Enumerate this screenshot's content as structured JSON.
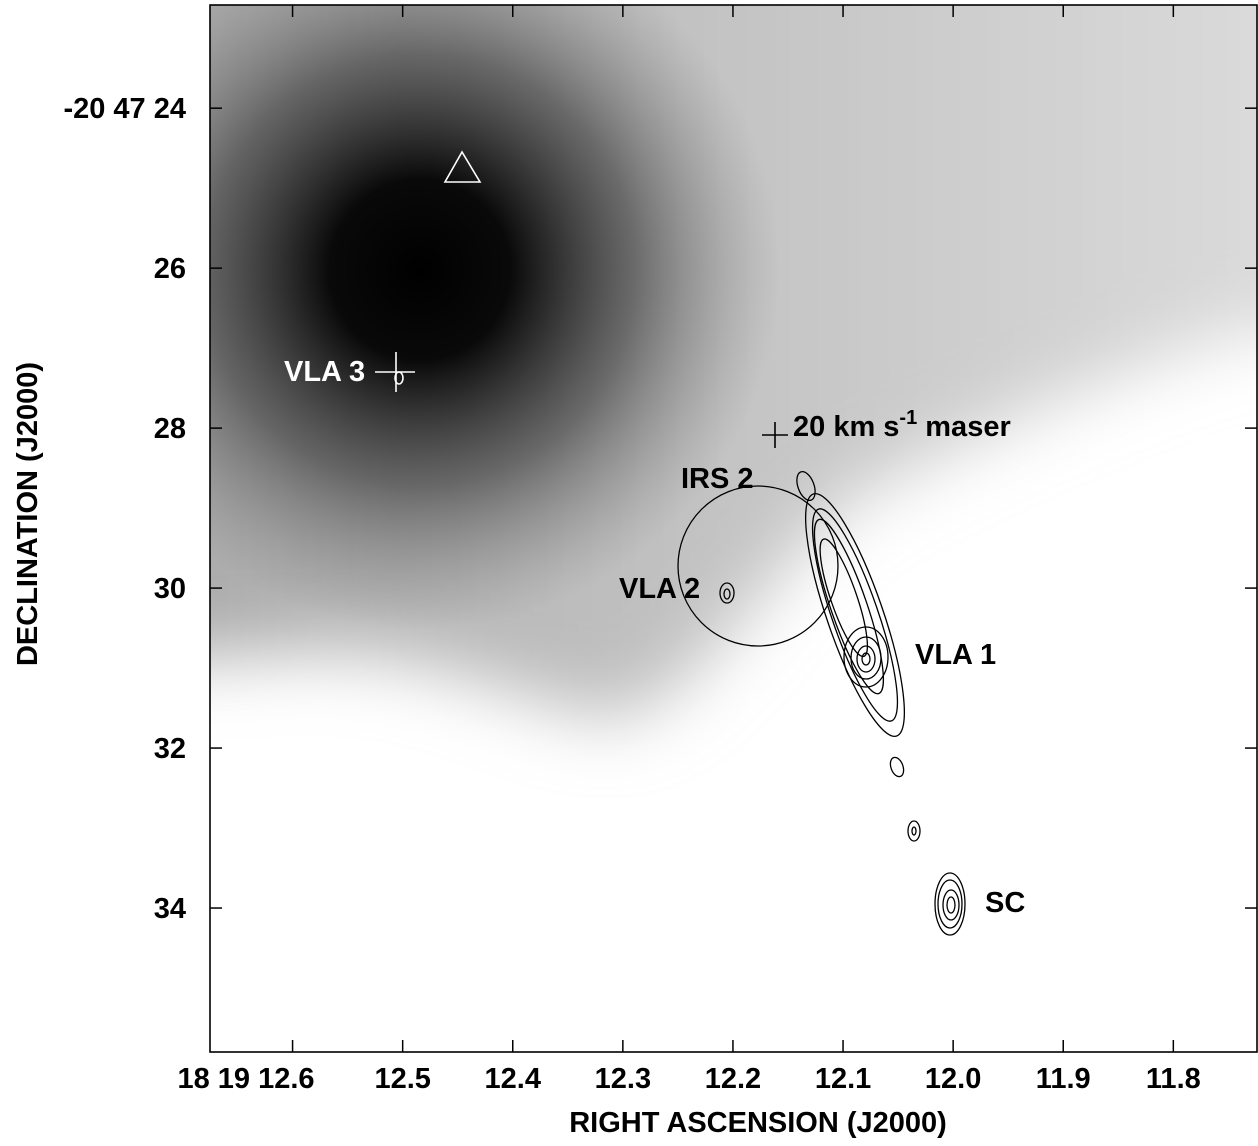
{
  "chart_data": {
    "type": "image",
    "x_label": "RIGHT ASCENSION (J2000)",
    "y_label": "DECLINATION (J2000)",
    "xlim": [
      12.675,
      11.724
    ],
    "ylim": [
      22.71,
      35.8
    ],
    "xticks": [
      {
        "value": 12.6,
        "label": "18 19 12.6"
      },
      12.5,
      12.4,
      12.3,
      12.2,
      12.1,
      {
        "value": 12,
        "label": "12.0"
      },
      11.9,
      11.8
    ],
    "yticks": [
      {
        "value": 24,
        "label": "-20 47 24"
      },
      26,
      28,
      30,
      32,
      34
    ],
    "annotations": [
      {
        "text": "VLA 3"
      },
      {
        "text": "20 km s",
        "sup": "-1",
        "after": " maser"
      },
      {
        "text": "IRS 2"
      },
      {
        "text": "VLA 2"
      },
      {
        "text": "VLA 1"
      },
      {
        "text": "SC"
      }
    ]
  }
}
